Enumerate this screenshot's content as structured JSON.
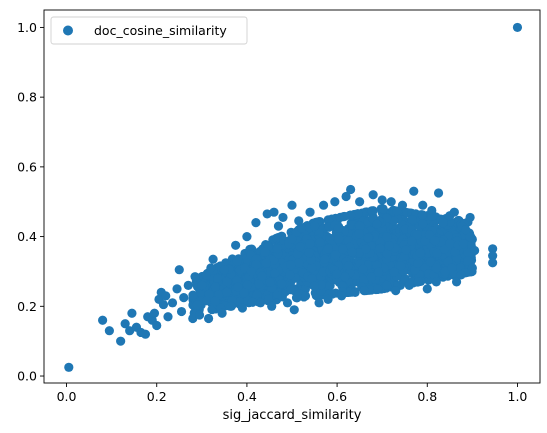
{
  "chart_data": {
    "type": "scatter",
    "title": "",
    "xlabel": "sig_jaccard_similarity",
    "ylabel": "",
    "xlim": [
      -0.05,
      1.05
    ],
    "ylim": [
      -0.02,
      1.05
    ],
    "xticks": [
      0.0,
      0.2,
      0.4,
      0.6,
      0.8,
      1.0
    ],
    "xtick_labels": [
      "0.0",
      "0.2",
      "0.4",
      "0.6",
      "0.8",
      "1.0"
    ],
    "yticks": [
      0.0,
      0.2,
      0.4,
      0.6,
      0.8,
      1.0
    ],
    "ytick_labels": [
      "0.0",
      "0.2",
      "0.4",
      "0.6",
      "0.8",
      "1.0"
    ],
    "grid": false,
    "legend": {
      "position": "top-left"
    },
    "series": [
      {
        "name": "doc_cosine_similarity",
        "color": "#1f77b4",
        "points": [
          [
            0.005,
            0.025
          ],
          [
            1.0,
            1.0
          ],
          [
            0.08,
            0.16
          ],
          [
            0.095,
            0.13
          ],
          [
            0.12,
            0.1
          ],
          [
            0.13,
            0.15
          ],
          [
            0.14,
            0.13
          ],
          [
            0.145,
            0.18
          ],
          [
            0.155,
            0.14
          ],
          [
            0.165,
            0.125
          ],
          [
            0.175,
            0.12
          ],
          [
            0.18,
            0.17
          ],
          [
            0.19,
            0.16
          ],
          [
            0.195,
            0.18
          ],
          [
            0.2,
            0.145
          ],
          [
            0.205,
            0.22
          ],
          [
            0.21,
            0.24
          ],
          [
            0.215,
            0.205
          ],
          [
            0.22,
            0.23
          ],
          [
            0.225,
            0.17
          ],
          [
            0.235,
            0.21
          ],
          [
            0.245,
            0.25
          ],
          [
            0.25,
            0.305
          ],
          [
            0.255,
            0.185
          ],
          [
            0.26,
            0.225
          ],
          [
            0.27,
            0.26
          ],
          [
            0.28,
            0.165
          ],
          [
            0.285,
            0.285
          ],
          [
            0.29,
            0.205
          ],
          [
            0.295,
            0.175
          ],
          [
            0.3,
            0.26
          ],
          [
            0.31,
            0.29
          ],
          [
            0.315,
            0.165
          ],
          [
            0.32,
            0.31
          ],
          [
            0.325,
            0.335
          ],
          [
            0.33,
            0.215
          ],
          [
            0.335,
            0.28
          ],
          [
            0.345,
            0.18
          ],
          [
            0.35,
            0.305
          ],
          [
            0.355,
            0.24
          ],
          [
            0.365,
            0.2
          ],
          [
            0.375,
            0.375
          ],
          [
            0.38,
            0.255
          ],
          [
            0.39,
            0.195
          ],
          [
            0.395,
            0.31
          ],
          [
            0.4,
            0.4
          ],
          [
            0.41,
            0.3
          ],
          [
            0.42,
            0.44
          ],
          [
            0.43,
            0.21
          ],
          [
            0.44,
            0.355
          ],
          [
            0.445,
            0.465
          ],
          [
            0.455,
            0.2
          ],
          [
            0.46,
            0.47
          ],
          [
            0.47,
            0.43
          ],
          [
            0.48,
            0.455
          ],
          [
            0.49,
            0.21
          ],
          [
            0.5,
            0.49
          ],
          [
            0.505,
            0.19
          ],
          [
            0.515,
            0.445
          ],
          [
            0.53,
            0.23
          ],
          [
            0.54,
            0.47
          ],
          [
            0.55,
            0.43
          ],
          [
            0.56,
            0.21
          ],
          [
            0.57,
            0.49
          ],
          [
            0.58,
            0.22
          ],
          [
            0.595,
            0.5
          ],
          [
            0.61,
            0.23
          ],
          [
            0.62,
            0.515
          ],
          [
            0.63,
            0.535
          ],
          [
            0.64,
            0.24
          ],
          [
            0.65,
            0.5
          ],
          [
            0.66,
            0.245
          ],
          [
            0.68,
            0.52
          ],
          [
            0.69,
            0.25
          ],
          [
            0.7,
            0.505
          ],
          [
            0.71,
            0.26
          ],
          [
            0.72,
            0.5
          ],
          [
            0.73,
            0.245
          ],
          [
            0.745,
            0.49
          ],
          [
            0.76,
            0.26
          ],
          [
            0.77,
            0.53
          ],
          [
            0.78,
            0.27
          ],
          [
            0.79,
            0.49
          ],
          [
            0.8,
            0.25
          ],
          [
            0.81,
            0.475
          ],
          [
            0.82,
            0.27
          ],
          [
            0.825,
            0.525
          ],
          [
            0.835,
            0.44
          ],
          [
            0.84,
            0.3
          ],
          [
            0.85,
            0.46
          ],
          [
            0.855,
            0.31
          ],
          [
            0.86,
            0.47
          ],
          [
            0.865,
            0.27
          ],
          [
            0.875,
            0.29
          ],
          [
            0.88,
            0.38
          ],
          [
            0.885,
            0.42
          ],
          [
            0.89,
            0.33
          ],
          [
            0.895,
            0.455
          ],
          [
            0.9,
            0.31
          ],
          [
            0.905,
            0.36
          ],
          [
            0.945,
            0.365
          ],
          [
            0.945,
            0.345
          ],
          [
            0.945,
            0.325
          ]
        ],
        "dense_cluster": {
          "x_range": [
            0.28,
            0.9
          ],
          "y_lower_at_x": [
            [
              0.28,
              0.18
            ],
            [
              0.4,
              0.21
            ],
            [
              0.55,
              0.23
            ],
            [
              0.7,
              0.25
            ],
            [
              0.9,
              0.3
            ]
          ],
          "y_upper_at_x": [
            [
              0.28,
              0.27
            ],
            [
              0.4,
              0.36
            ],
            [
              0.55,
              0.44
            ],
            [
              0.7,
              0.48
            ],
            [
              0.9,
              0.44
            ]
          ]
        }
      }
    ]
  }
}
